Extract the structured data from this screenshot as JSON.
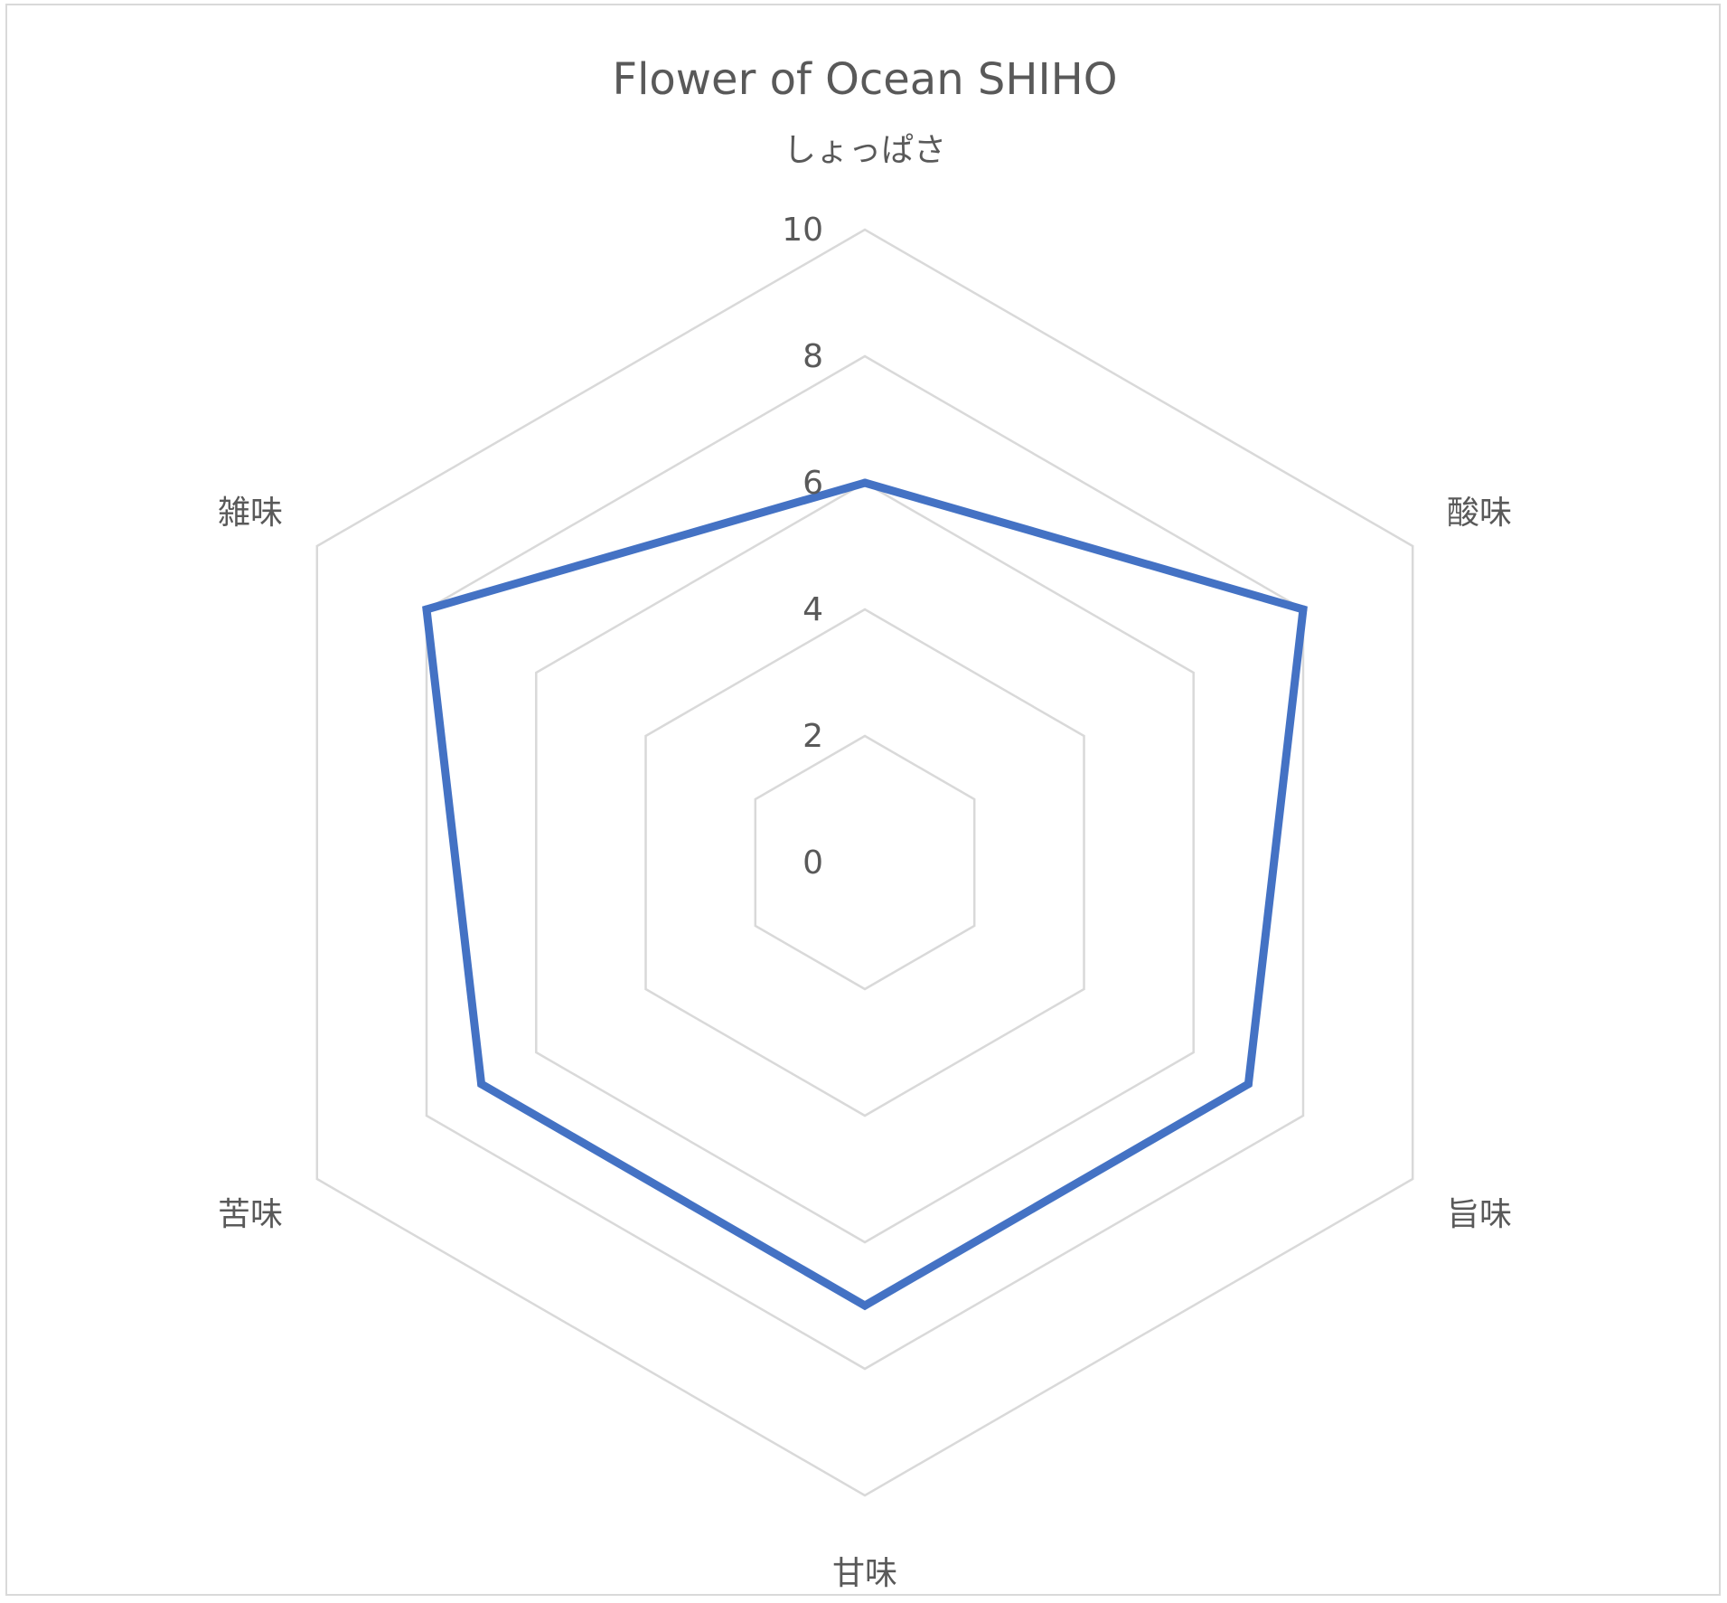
{
  "chart_data": {
    "type": "radar",
    "title": "Flower of Ocean SHIHO",
    "categories": [
      "しょっぱさ",
      "酸味",
      "旨味",
      "甘味",
      "苦味",
      "雑味"
    ],
    "series": [
      {
        "values": [
          6,
          8,
          7,
          7,
          7,
          8
        ]
      }
    ],
    "rlim": [
      0,
      10
    ],
    "r_ticks": [
      "0",
      "2",
      "4",
      "6",
      "8",
      "10"
    ],
    "grid": true,
    "legend": "none",
    "colors": {
      "series": "#4472c4",
      "grid": "#d9d9d9",
      "text": "#595959"
    }
  }
}
